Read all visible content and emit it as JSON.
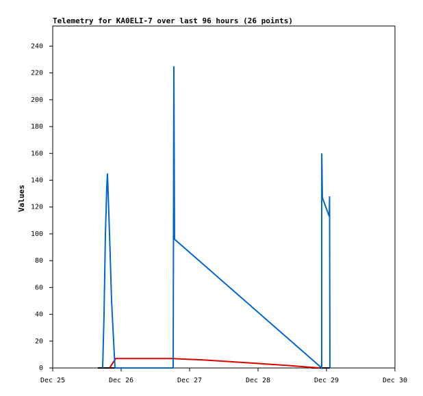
{
  "chart_data": {
    "type": "line",
    "title": "Telemetry for KA0ELI-7 over last 96 hours (26 points)",
    "y_label": "Values",
    "xlim": [
      25,
      30
    ],
    "xticks": [
      {
        "value": 25,
        "label": "Dec 25"
      },
      {
        "value": 26,
        "label": "Dec 26"
      },
      {
        "value": 27,
        "label": "Dec 27"
      },
      {
        "value": 28,
        "label": "Dec 28"
      },
      {
        "value": 29,
        "label": "Dec 29"
      },
      {
        "value": 30,
        "label": "Dec 30"
      }
    ],
    "ylim": [
      0,
      255
    ],
    "yticks": [
      0,
      20,
      40,
      60,
      80,
      100,
      120,
      140,
      160,
      180,
      200,
      220,
      240
    ],
    "series": [
      {
        "color": "#000000",
        "x": [
          25.66,
          25.92,
          null,
          28.78,
          29.05
        ],
        "values": [
          0,
          0,
          null,
          0,
          0
        ]
      },
      {
        "color": "#dd0000",
        "x": [
          25.83,
          25.92,
          26.75,
          27.2,
          27.8,
          28.4,
          28.9
        ],
        "values": [
          0,
          7,
          7,
          6,
          4,
          2,
          0
        ]
      },
      {
        "color": "#0066cc",
        "x": [
          25.73,
          25.75,
          25.77,
          25.79,
          25.8,
          25.81,
          25.83,
          25.86,
          25.91,
          26.76,
          26.765,
          26.77,
          26.78,
          28.93,
          28.931,
          28.94,
          29.04,
          29.045,
          29.05
        ],
        "values": [
          0,
          40,
          100,
          135,
          145,
          130,
          100,
          50,
          0,
          0,
          113,
          225,
          96,
          0,
          160,
          127,
          113,
          128,
          0
        ]
      }
    ]
  }
}
